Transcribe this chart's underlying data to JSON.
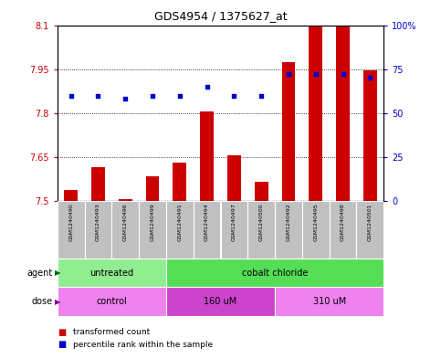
{
  "title": "GDS4954 / 1375627_at",
  "samples": [
    "GSM1240490",
    "GSM1240493",
    "GSM1240496",
    "GSM1240499",
    "GSM1240491",
    "GSM1240494",
    "GSM1240497",
    "GSM1240500",
    "GSM1240492",
    "GSM1240495",
    "GSM1240498",
    "GSM1240501"
  ],
  "red_values": [
    7.538,
    7.615,
    7.506,
    7.585,
    7.63,
    7.805,
    7.655,
    7.565,
    7.975,
    8.095,
    8.095,
    7.945
  ],
  "blue_values": [
    60,
    60,
    58,
    60,
    60,
    65,
    60,
    60,
    72,
    72,
    72,
    70
  ],
  "ylim_left": [
    7.5,
    8.1
  ],
  "ylim_right": [
    0,
    100
  ],
  "yticks_left": [
    7.5,
    7.65,
    7.8,
    7.95,
    8.1
  ],
  "yticks_right": [
    0,
    25,
    50,
    75,
    100
  ],
  "ytick_labels_right": [
    "0",
    "25",
    "50",
    "75",
    "100%"
  ],
  "hlines": [
    7.65,
    7.8,
    7.95
  ],
  "agent_groups": [
    {
      "label": "untreated",
      "start": 0,
      "end": 4,
      "color": "#90EE90"
    },
    {
      "label": "cobalt chloride",
      "start": 4,
      "end": 12,
      "color": "#55DD55"
    }
  ],
  "dose_groups": [
    {
      "label": "control",
      "start": 0,
      "end": 4,
      "color": "#EE82EE"
    },
    {
      "label": "160 uM",
      "start": 4,
      "end": 8,
      "color": "#CC44CC"
    },
    {
      "label": "310 uM",
      "start": 8,
      "end": 12,
      "color": "#EE82EE"
    }
  ],
  "legend_red": "transformed count",
  "legend_blue": "percentile rank within the sample",
  "bar_color": "#CC0000",
  "dot_color": "#0000CC",
  "bar_width": 0.5,
  "base_value": 7.5,
  "background_color": "#ffffff",
  "tick_color_left": "#CC0000",
  "tick_color_right": "#0000CC",
  "grid_color": "#000000",
  "sample_box_color": "#C0C0C0",
  "agent_label_color": "#006600",
  "dose_label_color": "#880088"
}
